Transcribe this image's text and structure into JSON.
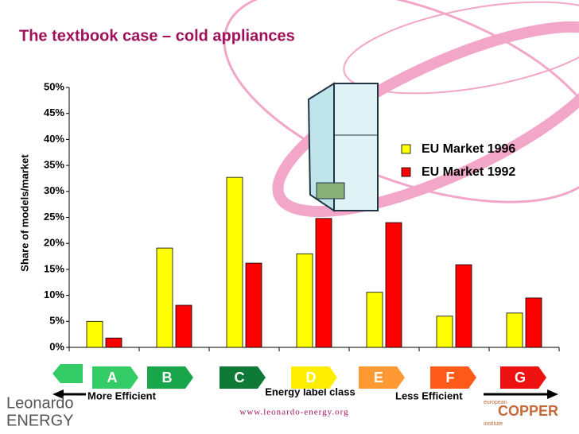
{
  "chart_data": {
    "type": "bar",
    "title": "The textbook case – cold appliances",
    "y_label": "Share of models/market",
    "x_label": "Energy label class",
    "left_note": "More Efficient",
    "right_note": "Less Efficient",
    "footer": "www.leonardo-energy.org",
    "logo_left": [
      "Leonardo",
      "ENERGY"
    ],
    "logo_right": [
      "european",
      "COPPER",
      "institute"
    ],
    "categories": [
      "A",
      "B",
      "C",
      "D",
      "E",
      "F",
      "G"
    ],
    "category_colors": [
      "#33cc66",
      "#19a64a",
      "#0f7a35",
      "#ffee00",
      "#ff9933",
      "#ff5a1a",
      "#ee1111"
    ],
    "series": [
      {
        "name": "EU Market 1996",
        "color": "#ffff00",
        "values": [
          5.0,
          19.1,
          32.7,
          18.0,
          10.6,
          6.0,
          6.6
        ]
      },
      {
        "name": "EU Market 1992",
        "color": "#ff0000",
        "values": [
          1.8,
          8.1,
          16.2,
          24.8,
          24.0,
          15.9,
          9.5
        ]
      }
    ],
    "ylim": [
      0,
      50
    ],
    "yticks": [
      {
        "value": 0,
        "label": "0%"
      },
      {
        "value": 5,
        "label": "5%"
      },
      {
        "value": 10,
        "label": "10%"
      },
      {
        "value": 15,
        "label": "15%"
      },
      {
        "value": 20,
        "label": "20%"
      },
      {
        "value": 25,
        "label": "25%"
      },
      {
        "value": 30,
        "label": "30%"
      },
      {
        "value": 35,
        "label": "35%"
      },
      {
        "value": 40,
        "label": "40%"
      },
      {
        "value": 45,
        "label": "45%"
      },
      {
        "value": 50,
        "label": "50%"
      }
    ],
    "legend": "upper right"
  }
}
